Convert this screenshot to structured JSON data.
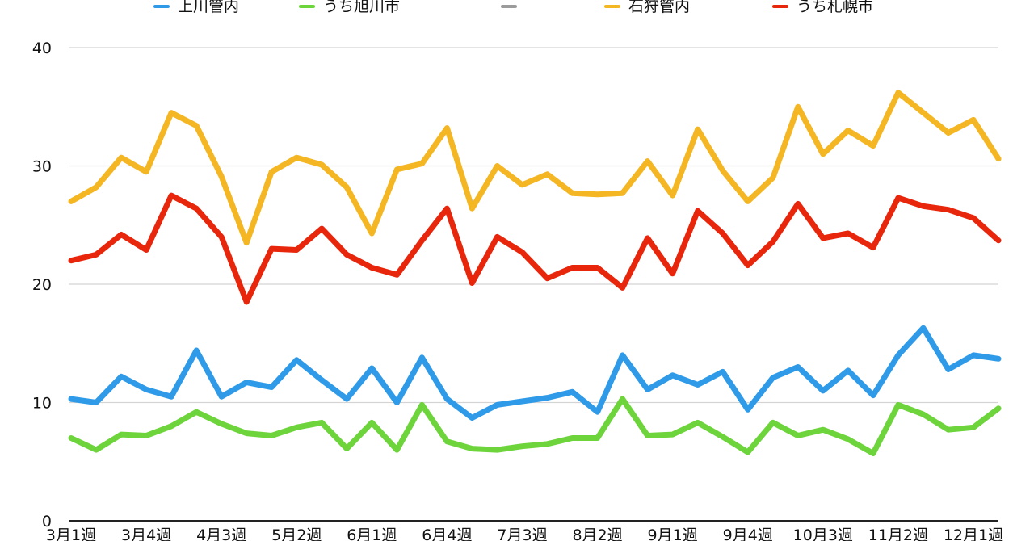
{
  "chart_data": {
    "type": "line",
    "title": "",
    "xlabel": "",
    "ylabel": "",
    "ylim": [
      0,
      40
    ],
    "yticks": [
      0,
      10,
      20,
      30,
      40
    ],
    "grid": true,
    "legend_position": "top",
    "xtick_labels": [
      "3月1週",
      "3月4週",
      "4月3週",
      "5月2週",
      "6月1週",
      "6月4週",
      "7月3週",
      "8月2週",
      "9月1週",
      "9月4週",
      "10月3週",
      "11月2週",
      "12月1週"
    ],
    "xtick_step": 3,
    "series": [
      {
        "name": "上川管内",
        "color": "#2f9be8",
        "values": [
          10.3,
          10.0,
          12.2,
          11.1,
          10.5,
          14.4,
          10.5,
          11.7,
          11.3,
          13.6,
          11.9,
          10.3,
          12.9,
          10.0,
          13.8,
          10.3,
          8.7,
          9.8,
          10.1,
          10.4,
          10.9,
          9.2,
          14.0,
          11.1,
          12.3,
          11.5,
          12.6,
          9.4,
          12.1,
          13.0,
          11.0,
          12.7,
          10.6,
          14.0,
          16.3,
          12.8,
          14.0,
          13.7
        ]
      },
      {
        "name": "うち旭川市",
        "color": "#6dd43c",
        "values": [
          7.0,
          6.0,
          7.3,
          7.2,
          8.0,
          9.2,
          8.2,
          7.4,
          7.2,
          7.9,
          8.3,
          6.1,
          8.3,
          6.0,
          9.8,
          6.7,
          6.1,
          6.0,
          6.3,
          6.5,
          7.0,
          7.0,
          10.3,
          7.2,
          7.3,
          8.3,
          7.1,
          5.8,
          8.3,
          7.2,
          7.7,
          6.9,
          5.7,
          9.8,
          9.0,
          7.7,
          7.9,
          9.5
        ]
      },
      {
        "name": "",
        "color": "#9b9b9b",
        "values": []
      },
      {
        "name": "石狩管内",
        "color": "#f4b622",
        "values": [
          27.0,
          28.2,
          30.7,
          29.5,
          34.5,
          33.4,
          29.1,
          23.5,
          29.5,
          30.7,
          30.1,
          28.2,
          24.3,
          29.7,
          30.2,
          33.2,
          26.4,
          30.0,
          28.4,
          29.3,
          27.7,
          27.6,
          27.7,
          30.4,
          27.5,
          33.1,
          29.6,
          27.0,
          29.0,
          35.0,
          31.0,
          33.0,
          31.7,
          36.2,
          34.5,
          32.8,
          33.9,
          30.6
        ]
      },
      {
        "name": "うち札幌市",
        "color": "#e8260c",
        "values": [
          22.0,
          22.5,
          24.2,
          22.9,
          27.5,
          26.4,
          24.0,
          18.5,
          23.0,
          22.9,
          24.7,
          22.5,
          21.4,
          20.8,
          23.7,
          26.4,
          20.1,
          24.0,
          22.7,
          20.5,
          21.4,
          21.4,
          19.7,
          23.9,
          20.9,
          26.2,
          24.3,
          21.6,
          23.6,
          26.8,
          23.9,
          24.3,
          23.1,
          27.3,
          26.6,
          26.3,
          25.6,
          23.7
        ]
      }
    ]
  }
}
